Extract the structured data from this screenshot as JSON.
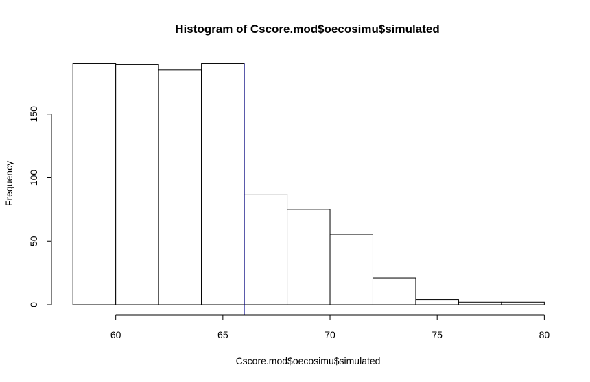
{
  "chart_data": {
    "type": "bar",
    "title": "Histogram of Cscore.mod$oecosimu$simulated",
    "xlabel": "Cscore.mod$oecosimu$simulated",
    "ylabel": "Frequency",
    "bins": [
      {
        "from": 58,
        "to": 60,
        "count": 190
      },
      {
        "from": 60,
        "to": 62,
        "count": 189
      },
      {
        "from": 62,
        "to": 64,
        "count": 185
      },
      {
        "from": 64,
        "to": 66,
        "count": 190
      },
      {
        "from": 66,
        "to": 68,
        "count": 87
      },
      {
        "from": 68,
        "to": 70,
        "count": 75
      },
      {
        "from": 70,
        "to": 72,
        "count": 55
      },
      {
        "from": 72,
        "to": 74,
        "count": 21
      },
      {
        "from": 74,
        "to": 76,
        "count": 4
      },
      {
        "from": 76,
        "to": 78,
        "count": 2
      },
      {
        "from": 78,
        "to": 80,
        "count": 2
      }
    ],
    "xlim": [
      58,
      80
    ],
    "ylim": [
      0,
      190
    ],
    "x_ticks": [
      60,
      65,
      70,
      75,
      80
    ],
    "y_ticks": [
      0,
      50,
      100,
      150
    ],
    "vline": {
      "x": 66,
      "color": "#00008b"
    },
    "bar_fill": "#ffffff",
    "bar_stroke": "#000000",
    "grid": false
  }
}
